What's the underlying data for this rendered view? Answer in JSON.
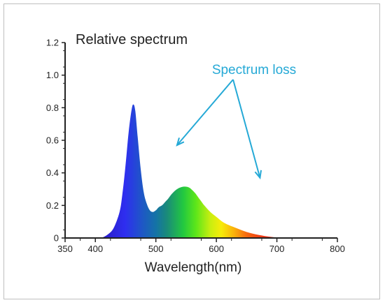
{
  "chart_data": {
    "type": "area",
    "title": "Relative spectrum",
    "xlabel": "Wavelength(nm)",
    "ylabel": "",
    "xlim": [
      350,
      800
    ],
    "ylim": [
      0,
      1.2
    ],
    "x_ticks": [
      350,
      400,
      500,
      600,
      700,
      800
    ],
    "x_tick_labels": [
      "350",
      "400",
      "500",
      "600",
      "700",
      "800"
    ],
    "y_ticks": [
      0,
      0.2,
      0.4,
      0.6,
      0.8,
      1.0,
      1.2
    ],
    "y_tick_labels": [
      "0",
      "0.2",
      "0.4",
      "0.6",
      "0.8",
      "1.0",
      "1.2"
    ],
    "grid": false,
    "fill": "visible-spectrum gradient",
    "series": [
      {
        "x": [
          410,
          420,
          430,
          440,
          445,
          450,
          455,
          460,
          463,
          466,
          470,
          475,
          480,
          485,
          490,
          495,
          500,
          505,
          510,
          515,
          520,
          525,
          530,
          535,
          540,
          545,
          550,
          555,
          560,
          565,
          570,
          575,
          580,
          590,
          600,
          610,
          620,
          630,
          640,
          650,
          660,
          670,
          680,
          690,
          700,
          710
        ],
        "y": [
          0.0,
          0.02,
          0.06,
          0.16,
          0.28,
          0.45,
          0.65,
          0.79,
          0.82,
          0.78,
          0.62,
          0.42,
          0.28,
          0.21,
          0.17,
          0.16,
          0.17,
          0.19,
          0.2,
          0.22,
          0.24,
          0.265,
          0.285,
          0.3,
          0.31,
          0.315,
          0.315,
          0.31,
          0.295,
          0.275,
          0.25,
          0.225,
          0.2,
          0.16,
          0.13,
          0.1,
          0.08,
          0.065,
          0.05,
          0.037,
          0.027,
          0.019,
          0.012,
          0.007,
          0.003,
          0.0
        ]
      }
    ],
    "annotations": [
      {
        "text": "Spectrum loss",
        "color": "#25a9d6",
        "arrow_targets": [
          [
            535,
            0.57
          ],
          [
            672,
            0.37
          ]
        ]
      }
    ],
    "colors": {
      "axis": "#222222",
      "annotation": "#25a9d6"
    }
  }
}
